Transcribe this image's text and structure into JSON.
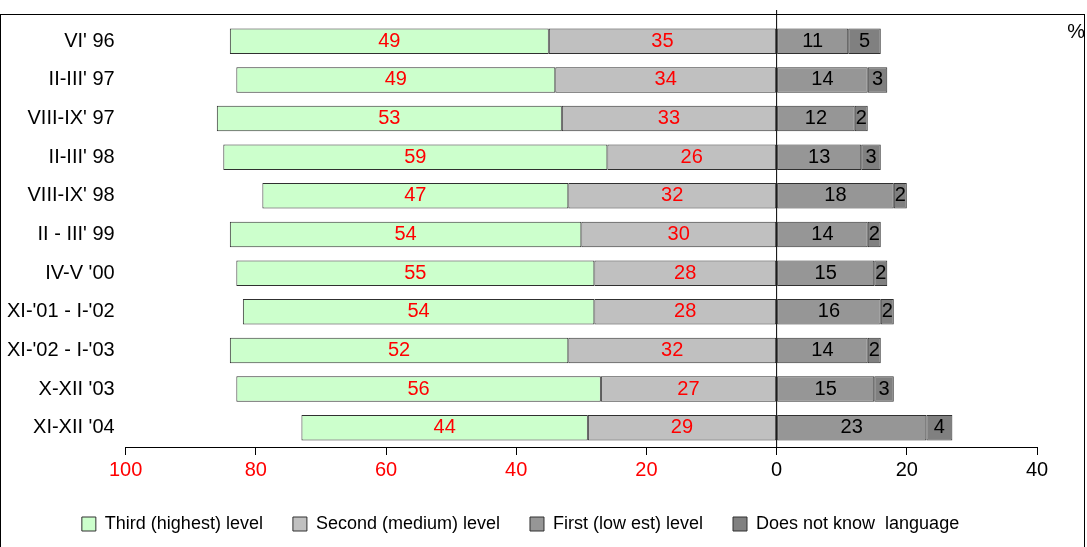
{
  "chart_data": {
    "type": "bar",
    "orientation": "horizontal",
    "categories": [
      "VI' 96",
      "II-III' 97",
      "VIII-IX' 97",
      "II-III' 98",
      "VIII-IX' 98",
      "II - III' 99",
      "IV-V '00",
      "XI-'01 - I-'02",
      "XI-'02 - I-'03",
      "X-XII '03",
      "XI-XII '04"
    ],
    "series": [
      {
        "name": "Third (highest) level",
        "color": "#ccffcc",
        "values": [
          49,
          49,
          53,
          59,
          47,
          54,
          55,
          54,
          52,
          56,
          44
        ],
        "base": [
          -84,
          -83,
          -86,
          -85,
          -79,
          -84,
          -83,
          -82,
          -84,
          -83,
          -73
        ]
      },
      {
        "name": "Second (medium) level",
        "color": "#c0c0c0",
        "values": [
          35,
          34,
          33,
          26,
          32,
          30,
          28,
          28,
          32,
          27,
          29
        ],
        "base": [
          -35,
          -34,
          -33,
          -26,
          -32,
          -30,
          -28,
          -28,
          -32,
          -27,
          -29
        ]
      },
      {
        "name": "First (low est) level",
        "color": "#969696",
        "values": [
          11,
          14,
          12,
          13,
          18,
          14,
          15,
          16,
          14,
          15,
          23
        ],
        "base": [
          0,
          0,
          0,
          0,
          0,
          0,
          0,
          0,
          0,
          0,
          0
        ]
      },
      {
        "name": "Does not know  language",
        "color": "#808080",
        "values": [
          5,
          3,
          2,
          3,
          2,
          2,
          2,
          2,
          2,
          3,
          4
        ],
        "base": [
          11,
          14,
          12,
          13,
          18,
          14,
          15,
          16,
          14,
          15,
          23
        ]
      }
    ],
    "xlim": [
      -100,
      40
    ],
    "xticks": [
      {
        "value": -100,
        "label": "100"
      },
      {
        "value": -80,
        "label": "80"
      },
      {
        "value": -60,
        "label": "60"
      },
      {
        "value": -40,
        "label": "40"
      },
      {
        "value": -20,
        "label": "20"
      },
      0,
      20,
      40
    ],
    "ref_lines": [
      {
        "axis": "x",
        "value": 0
      }
    ],
    "data_labels": true,
    "annotations": [
      "%"
    ],
    "legend": "bottom"
  }
}
